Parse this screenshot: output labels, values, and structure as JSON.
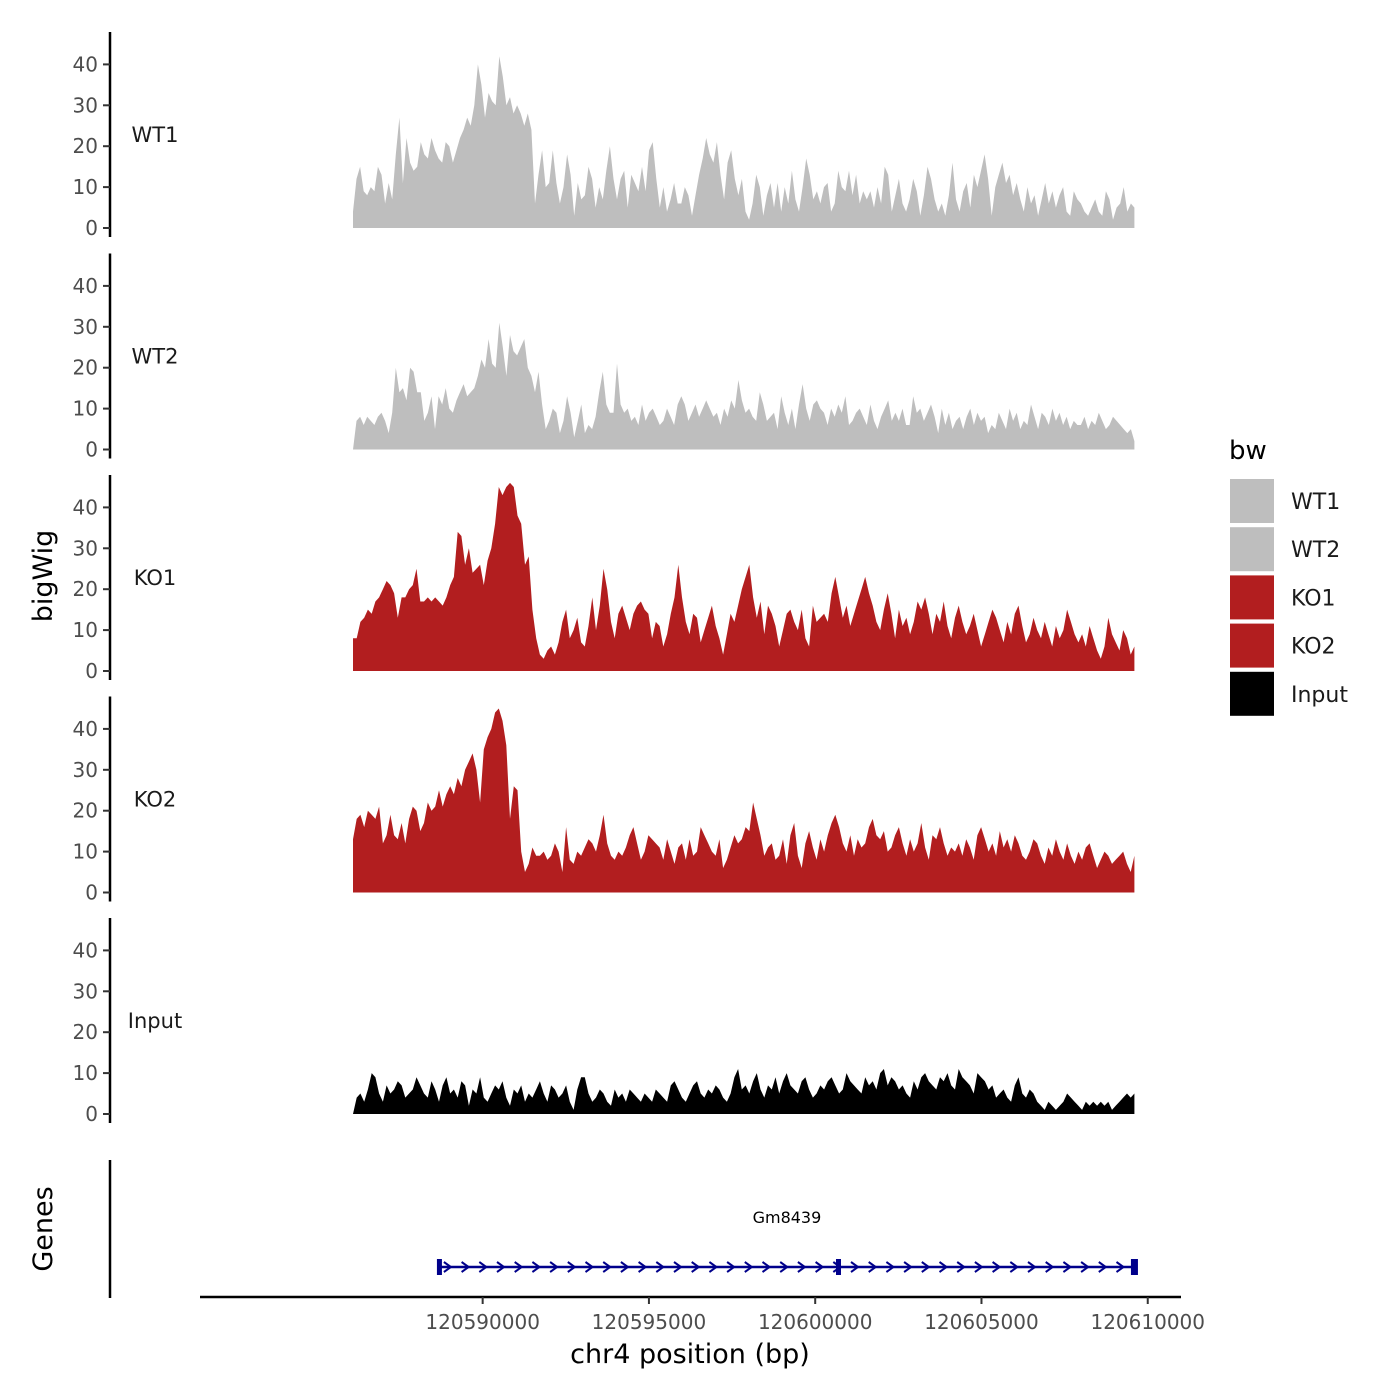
{
  "chart_data": {
    "type": "area",
    "title": "",
    "xlabel": "chr4 position (bp)",
    "ylabel_tracks": "bigWig",
    "ylabel_genes": "Genes",
    "xlim": [
      120581500,
      120611000
    ],
    "x_start": 120586100,
    "x_end": 120609600,
    "x_ticks": [
      120590000,
      120595000,
      120600000,
      120605000,
      120610000
    ],
    "x_tick_labels": [
      "120590000",
      "120595000",
      "120600000",
      "120605000",
      "120610000"
    ],
    "ylim": [
      0,
      48
    ],
    "y_ticks": [
      0,
      10,
      20,
      30,
      40
    ],
    "y_tick_labels": [
      "0",
      "10",
      "20",
      "30",
      "40"
    ],
    "legend": {
      "title": "bw",
      "position": "right",
      "entries": [
        {
          "label": "WT1",
          "color": "#bebebe"
        },
        {
          "label": "WT2",
          "color": "#bebebe"
        },
        {
          "label": "KO1",
          "color": "#b21e1f"
        },
        {
          "label": "KO2",
          "color": "#b21e1f"
        },
        {
          "label": "Input",
          "color": "#000000"
        }
      ]
    },
    "series": [
      {
        "name": "WT1",
        "color": "#bebebe",
        "values": [
          4,
          12,
          15,
          9,
          8,
          10,
          9,
          15,
          13,
          6,
          11,
          7,
          18,
          27,
          11,
          22,
          16,
          14,
          15,
          21,
          18,
          17,
          22,
          19,
          17,
          16,
          21,
          20,
          16,
          19,
          22,
          24,
          27,
          25,
          30,
          40,
          35,
          27,
          33,
          31,
          30,
          42,
          37,
          30,
          32,
          28,
          30,
          28,
          25,
          28,
          24,
          6,
          13,
          19,
          10,
          11,
          19,
          11,
          6,
          10,
          18,
          13,
          3,
          11,
          7,
          8,
          15,
          12,
          5,
          10,
          7,
          14,
          20,
          12,
          7,
          12,
          14,
          5,
          13,
          11,
          9,
          15,
          9,
          19,
          21,
          12,
          5,
          10,
          4,
          7,
          11,
          6,
          6,
          10,
          8,
          3,
          8,
          13,
          17,
          22,
          18,
          16,
          21,
          13,
          7,
          16,
          19,
          12,
          8,
          12,
          4,
          2,
          6,
          13,
          10,
          3,
          8,
          11,
          5,
          11,
          4,
          10,
          6,
          14,
          7,
          4,
          10,
          17,
          13,
          7,
          9,
          6,
          10,
          11,
          4,
          6,
          14,
          10,
          9,
          14,
          8,
          13,
          6,
          9,
          7,
          9,
          5,
          10,
          6,
          15,
          13,
          4,
          8,
          12,
          6,
          4,
          7,
          12,
          9,
          3,
          8,
          15,
          12,
          7,
          4,
          6,
          3,
          8,
          16,
          7,
          4,
          9,
          11,
          5,
          13,
          10,
          14,
          18,
          12,
          3,
          10,
          13,
          16,
          11,
          13,
          8,
          11,
          7,
          4,
          10,
          6,
          8,
          3,
          7,
          11,
          6,
          9,
          5,
          8,
          10,
          4,
          3,
          9,
          7,
          6,
          4,
          3,
          5,
          7,
          4,
          3,
          9,
          7,
          2,
          5,
          6,
          10,
          4,
          6,
          5
        ]
      },
      {
        "name": "WT2",
        "color": "#bebebe",
        "values": [
          0,
          7,
          8,
          6,
          8,
          7,
          6,
          8,
          9,
          7,
          4,
          9,
          20,
          14,
          15,
          12,
          20,
          19,
          14,
          14,
          7,
          9,
          13,
          5,
          13,
          11,
          15,
          10,
          9,
          12,
          14,
          16,
          13,
          14,
          15,
          18,
          22,
          20,
          27,
          21,
          20,
          31,
          25,
          18,
          28,
          24,
          23,
          25,
          27,
          20,
          18,
          14,
          19,
          11,
          5,
          7,
          10,
          9,
          4,
          7,
          13,
          9,
          3,
          7,
          11,
          4,
          6,
          5,
          8,
          14,
          19,
          11,
          9,
          9,
          21,
          11,
          9,
          10,
          7,
          8,
          6,
          11,
          7,
          9,
          10,
          8,
          6,
          7,
          10,
          8,
          6,
          11,
          13,
          11,
          7,
          9,
          11,
          8,
          10,
          12,
          10,
          8,
          9,
          6,
          10,
          8,
          12,
          10,
          17,
          12,
          9,
          10,
          8,
          7,
          14,
          11,
          7,
          8,
          9,
          5,
          13,
          9,
          6,
          10,
          5,
          11,
          16,
          10,
          7,
          11,
          12,
          10,
          9,
          6,
          10,
          8,
          11,
          9,
          13,
          6,
          7,
          9,
          10,
          8,
          6,
          11,
          7,
          5,
          8,
          10,
          12,
          7,
          9,
          7,
          10,
          6,
          6,
          13,
          9,
          10,
          7,
          9,
          11,
          8,
          4,
          10,
          6,
          9,
          5,
          7,
          8,
          5,
          8,
          10,
          6,
          9,
          7,
          8,
          4,
          6,
          5,
          9,
          7,
          5,
          10,
          7,
          9,
          5,
          7,
          6,
          11,
          8,
          5,
          9,
          8,
          6,
          10,
          7,
          9,
          6,
          8,
          5,
          7,
          6,
          6,
          8,
          5,
          7,
          6,
          9,
          7,
          5,
          6,
          8,
          7,
          6,
          5,
          4,
          5,
          2
        ]
      },
      {
        "name": "KO1",
        "color": "#b21e1f",
        "values": [
          8,
          8,
          12,
          13,
          15,
          14,
          17,
          18,
          20,
          22,
          21,
          19,
          13,
          18,
          18,
          20,
          21,
          25,
          17,
          17,
          18,
          17,
          18,
          17,
          16,
          18,
          21,
          23,
          34,
          33,
          26,
          30,
          24,
          25,
          26,
          21,
          27,
          30,
          36,
          45,
          43,
          45,
          46,
          45,
          38,
          36,
          26,
          28,
          15,
          8,
          4,
          3,
          5,
          6,
          4,
          7,
          12,
          15,
          8,
          10,
          13,
          7,
          6,
          11,
          18,
          10,
          16,
          25,
          20,
          12,
          8,
          14,
          16,
          13,
          10,
          14,
          16,
          17,
          15,
          14,
          8,
          12,
          11,
          6,
          9,
          14,
          18,
          26,
          18,
          12,
          9,
          14,
          13,
          7,
          10,
          13,
          16,
          11,
          8,
          4,
          9,
          14,
          12,
          16,
          20,
          23,
          26,
          18,
          13,
          17,
          9,
          16,
          14,
          11,
          6,
          10,
          14,
          15,
          12,
          10,
          15,
          8,
          6,
          16,
          12,
          13,
          14,
          12,
          19,
          23,
          18,
          13,
          16,
          11,
          14,
          17,
          20,
          23,
          19,
          16,
          12,
          10,
          15,
          19,
          14,
          8,
          15,
          11,
          13,
          9,
          12,
          17,
          15,
          18,
          14,
          9,
          14,
          12,
          17,
          11,
          8,
          13,
          16,
          12,
          9,
          11,
          14,
          10,
          6,
          9,
          12,
          15,
          13,
          10,
          7,
          12,
          9,
          14,
          16,
          11,
          7,
          9,
          13,
          10,
          8,
          12,
          9,
          6,
          11,
          8,
          10,
          15,
          12,
          9,
          7,
          9,
          6,
          11,
          8,
          5,
          3,
          6,
          13,
          9,
          7,
          5,
          10,
          8,
          4,
          6
        ]
      },
      {
        "name": "KO2",
        "color": "#b21e1f",
        "values": [
          13,
          18,
          19,
          16,
          20,
          19,
          18,
          21,
          12,
          14,
          19,
          14,
          13,
          17,
          12,
          18,
          21,
          20,
          15,
          17,
          22,
          20,
          21,
          25,
          21,
          24,
          26,
          24,
          28,
          26,
          30,
          32,
          34,
          30,
          22,
          35,
          38,
          40,
          44,
          45,
          42,
          36,
          18,
          26,
          25,
          10,
          5,
          7,
          11,
          9,
          9,
          10,
          8,
          9,
          12,
          10,
          5,
          16,
          8,
          7,
          10,
          9,
          11,
          13,
          12,
          10,
          14,
          19,
          12,
          9,
          8,
          10,
          9,
          11,
          14,
          16,
          12,
          8,
          10,
          14,
          13,
          12,
          11,
          8,
          13,
          10,
          7,
          11,
          12,
          8,
          13,
          9,
          10,
          16,
          14,
          12,
          10,
          9,
          13,
          6,
          8,
          11,
          14,
          12,
          13,
          16,
          15,
          22,
          18,
          14,
          9,
          11,
          12,
          8,
          9,
          13,
          7,
          14,
          17,
          9,
          6,
          12,
          15,
          11,
          8,
          13,
          10,
          14,
          17,
          19,
          16,
          12,
          10,
          14,
          9,
          13,
          11,
          12,
          16,
          18,
          14,
          13,
          15,
          10,
          11,
          14,
          16,
          12,
          9,
          13,
          10,
          12,
          17,
          11,
          8,
          14,
          13,
          16,
          12,
          9,
          11,
          10,
          12,
          9,
          13,
          11,
          8,
          14,
          16,
          13,
          10,
          12,
          9,
          15,
          11,
          13,
          10,
          14,
          12,
          9,
          8,
          10,
          13,
          12,
          9,
          7,
          11,
          9,
          13,
          10,
          8,
          12,
          9,
          7,
          10,
          8,
          11,
          12,
          9,
          6,
          8,
          10,
          9,
          7,
          8,
          9,
          10,
          7,
          5,
          9
        ]
      },
      {
        "name": "Input",
        "color": "#000000",
        "values": [
          0,
          4,
          5,
          3,
          6,
          10,
          9,
          5,
          3,
          7,
          5,
          6,
          8,
          7,
          4,
          5,
          6,
          9,
          7,
          5,
          4,
          8,
          6,
          3,
          7,
          9,
          5,
          6,
          4,
          8,
          7,
          2,
          6,
          5,
          9,
          4,
          3,
          5,
          7,
          6,
          8,
          4,
          2,
          6,
          5,
          7,
          3,
          5,
          4,
          6,
          8,
          5,
          3,
          7,
          6,
          4,
          5,
          7,
          3,
          1,
          6,
          9,
          9,
          5,
          3,
          4,
          6,
          5,
          3,
          2,
          6,
          4,
          5,
          3,
          6,
          5,
          4,
          3,
          5,
          4,
          3,
          6,
          5,
          4,
          3,
          7,
          8,
          6,
          4,
          3,
          5,
          7,
          8,
          5,
          4,
          6,
          5,
          7,
          6,
          4,
          3,
          5,
          9,
          11,
          6,
          7,
          5,
          8,
          10,
          6,
          4,
          7,
          6,
          9,
          5,
          8,
          10,
          7,
          6,
          5,
          8,
          9,
          6,
          4,
          5,
          7,
          6,
          8,
          9,
          7,
          5,
          6,
          10,
          8,
          7,
          6,
          5,
          9,
          7,
          8,
          6,
          10,
          11,
          7,
          9,
          8,
          6,
          7,
          5,
          4,
          8,
          6,
          9,
          10,
          8,
          7,
          6,
          9,
          8,
          10,
          7,
          6,
          11,
          9,
          8,
          7,
          5,
          10,
          9,
          8,
          6,
          7,
          4,
          5,
          6,
          4,
          3,
          7,
          9,
          5,
          4,
          6,
          5,
          3,
          2,
          1,
          3,
          2,
          1,
          2,
          3,
          5,
          4,
          3,
          2,
          1,
          3,
          2,
          3,
          2,
          3,
          2,
          3,
          1,
          2,
          3,
          4,
          5,
          4,
          5
        ]
      }
    ],
    "genes": [
      {
        "name": "Gm8439",
        "start": 120588700,
        "end": 120609600,
        "exon_positions": [
          120588700,
          120600700,
          120609600
        ],
        "strand": "+",
        "color": "#00008b"
      }
    ]
  }
}
